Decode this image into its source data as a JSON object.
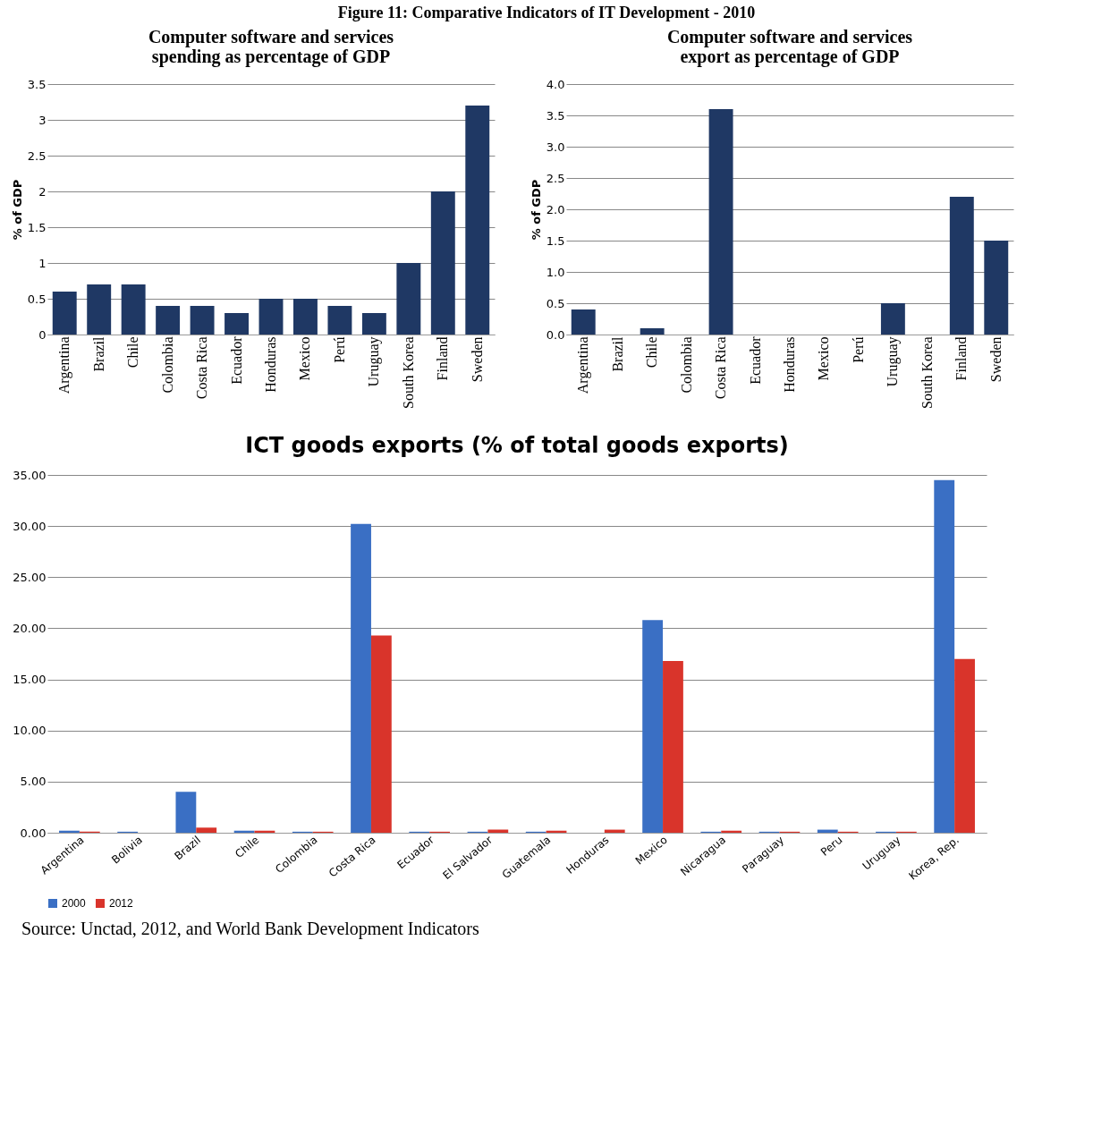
{
  "chart_data": [
    {
      "type": "bar",
      "title": "Computer software and services spending as percentage of GDP",
      "ylabel": "% of GDP",
      "annotations": [
        "Figure 11: Comparative Indicators of IT Development - 2010"
      ],
      "categories": [
        "Argentina",
        "Brazil",
        "Chile",
        "Colombia",
        "Costa Rica",
        "Ecuador",
        "Honduras",
        "Mexico",
        "Perú",
        "Uruguay",
        "South Korea",
        "Finland",
        "Sweden"
      ],
      "values": [
        0.6,
        0.7,
        0.7,
        0.4,
        0.4,
        0.3,
        0.5,
        0.5,
        0.4,
        0.3,
        1.0,
        2.0,
        3.2
      ],
      "color": "#1f3864",
      "ylim": [
        0,
        3.5
      ],
      "yticks": [
        0,
        0.5,
        1,
        1.5,
        2,
        2.5,
        3,
        3.5
      ],
      "grid": "y"
    },
    {
      "type": "bar",
      "title": "Computer software and services export as percentage of GDP",
      "ylabel": "% of GDP",
      "categories": [
        "Argentina",
        "Brazil",
        "Chile",
        "Colombia",
        "Costa Rica",
        "Ecuador",
        "Honduras",
        "Mexico",
        "Perú",
        "Uruguay",
        "South Korea",
        "Finland",
        "Sweden"
      ],
      "values": [
        0.4,
        0,
        0.1,
        0,
        3.6,
        0,
        0,
        0,
        0,
        0.5,
        0,
        2.2,
        1.5
      ],
      "color": "#1f3864",
      "ylim": [
        0,
        4
      ],
      "yticks": [
        {
          "value": 0,
          "label": "0.0"
        },
        {
          "value": 0.5,
          "label": "0.5"
        },
        {
          "value": 1,
          "label": "1.0"
        },
        {
          "value": 1.5,
          "label": "1.5"
        },
        {
          "value": 2,
          "label": "2.0"
        },
        {
          "value": 2.5,
          "label": "2.5"
        },
        {
          "value": 3,
          "label": "3.0"
        },
        {
          "value": 3.5,
          "label": "3.5"
        },
        {
          "value": 4,
          "label": "4.0"
        }
      ],
      "grid": "y"
    },
    {
      "type": "bar",
      "title": "ICT goods exports (% of total goods exports)",
      "annotations": [
        "Source: Unctad, 2012, and World Bank Development Indicators"
      ],
      "categories": [
        "Argentina",
        "Bolivia",
        "Brazil",
        "Chile",
        "Colombia",
        "Costa Rica",
        "Ecuador",
        "El Salvador",
        "Guatemala",
        "Honduras",
        "Mexico",
        "Nicaragua",
        "Paraguay",
        "Peru",
        "Uruguay",
        "Korea, Rep."
      ],
      "series": [
        {
          "name": "2000",
          "color": "#3a6fc4",
          "values": [
            0.2,
            0.1,
            4.0,
            0.2,
            0.1,
            30.2,
            0.1,
            0.1,
            0.1,
            0.0,
            20.8,
            0.1,
            0.1,
            0.3,
            0.1,
            34.5
          ]
        },
        {
          "name": "2012",
          "color": "#d9342b",
          "values": [
            0.1,
            0.0,
            0.5,
            0.2,
            0.1,
            19.3,
            0.1,
            0.3,
            0.2,
            0.3,
            16.8,
            0.2,
            0.1,
            0.1,
            0.1,
            17.0
          ]
        }
      ],
      "ylim": [
        0,
        35
      ],
      "yticks": [
        {
          "value": 0,
          "label": "0.00"
        },
        {
          "value": 5,
          "label": "5.00"
        },
        {
          "value": 10,
          "label": "10.00"
        },
        {
          "value": 15,
          "label": "15.00"
        },
        {
          "value": 20,
          "label": "20.00"
        },
        {
          "value": 25,
          "label": "25.00"
        },
        {
          "value": 30,
          "label": "30.00"
        },
        {
          "value": 35,
          "label": "35.00"
        }
      ],
      "grid": "y",
      "legend": "bottom"
    }
  ]
}
